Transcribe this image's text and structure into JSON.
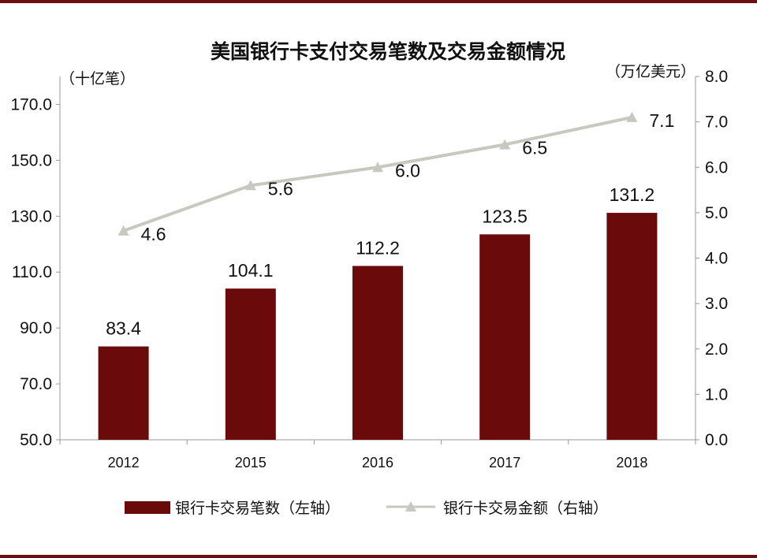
{
  "chart_data": {
    "type": "bar+line",
    "title": "美国银行卡支付交易笔数及交易金额情况",
    "left_unit": "（十亿笔）",
    "right_unit": "（万亿美元）",
    "categories": [
      "2012",
      "2015",
      "2016",
      "2017",
      "2018"
    ],
    "left_axis": {
      "ticks": [
        "50.0",
        "70.0",
        "90.0",
        "110.0",
        "130.0",
        "150.0",
        "170.0"
      ],
      "ylim": [
        50,
        180
      ]
    },
    "right_axis": {
      "ticks": [
        "0.0",
        "1.0",
        "2.0",
        "3.0",
        "4.0",
        "5.0",
        "6.0",
        "7.0",
        "8.0"
      ],
      "ylim": [
        0,
        8
      ]
    },
    "series": [
      {
        "name": "银行卡交易笔数（左轴）",
        "kind": "bar",
        "axis": "left",
        "color": "#6b0a0a",
        "values": [
          83.4,
          104.1,
          112.2,
          123.5,
          131.2
        ],
        "labels": [
          "83.4",
          "104.1",
          "112.2",
          "123.5",
          "131.2"
        ]
      },
      {
        "name": "银行卡交易金额（右轴）",
        "kind": "line",
        "axis": "right",
        "color": "#c8c8c0",
        "marker": "triangle",
        "values": [
          4.6,
          5.6,
          6.0,
          6.5,
          7.1
        ],
        "labels": [
          "4.6",
          "5.6",
          "6.0",
          "6.5",
          "7.1"
        ]
      }
    ],
    "grid": false,
    "legend_position": "bottom"
  }
}
